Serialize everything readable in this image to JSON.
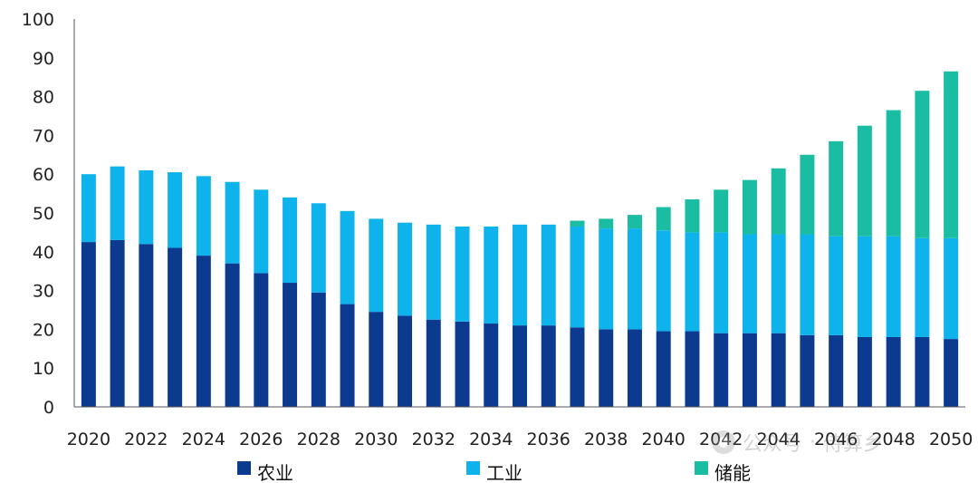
{
  "chart_data": {
    "type": "bar",
    "stacked": true,
    "title": "",
    "xlabel": "",
    "ylabel": "",
    "ylim": [
      0,
      100
    ],
    "yticks": [
      0,
      10,
      20,
      30,
      40,
      50,
      60,
      70,
      80,
      90,
      100
    ],
    "xtick_labels": [
      "2020",
      "2022",
      "2024",
      "2026",
      "2028",
      "2030",
      "2032",
      "2034",
      "2036",
      "2038",
      "2040",
      "2042",
      "2044",
      "2046",
      "2048",
      "2050"
    ],
    "grid": false,
    "legend_position": "bottom",
    "categories": [
      "2020",
      "2021",
      "2022",
      "2023",
      "2024",
      "2025",
      "2026",
      "2027",
      "2028",
      "2029",
      "2030",
      "2031",
      "2032",
      "2033",
      "2034",
      "2035",
      "2036",
      "2037",
      "2038",
      "2039",
      "2040",
      "2041",
      "2042",
      "2043",
      "2044",
      "2045",
      "2046",
      "2047",
      "2048",
      "2049",
      "2050"
    ],
    "series": [
      {
        "name": "农业",
        "color": "#0b3a8f",
        "values": [
          42.5,
          43,
          42,
          41,
          39,
          37,
          34.5,
          32,
          29.5,
          26.5,
          24.5,
          23.5,
          22.5,
          22,
          21.5,
          21,
          21,
          20.5,
          20,
          20,
          19.5,
          19.5,
          19,
          19,
          19,
          18.5,
          18.5,
          18,
          18,
          18,
          17.5
        ]
      },
      {
        "name": "工业",
        "color": "#0fb3ec",
        "values": [
          17.5,
          19,
          19,
          19.5,
          20.5,
          21,
          21.5,
          22,
          23,
          24,
          24,
          24,
          24.5,
          24.5,
          25,
          26,
          26,
          26,
          26,
          26,
          26,
          25.5,
          26,
          25.5,
          25.5,
          26,
          25.5,
          26,
          26,
          25.5,
          26
        ]
      },
      {
        "name": "储能",
        "color": "#1bbda2",
        "values": [
          0,
          0,
          0,
          0,
          0,
          0,
          0,
          0,
          0,
          0,
          0,
          0,
          0,
          0,
          0,
          0,
          0,
          1.5,
          2.5,
          3.5,
          6,
          8.5,
          11,
          14,
          17,
          20.5,
          24.5,
          28.5,
          32.5,
          38,
          43
        ]
      }
    ]
  },
  "watermark": {
    "icon": "wechat-public-account-icon",
    "text_left": "公众号",
    "separator": "·",
    "text_right": "侍算乡"
  }
}
